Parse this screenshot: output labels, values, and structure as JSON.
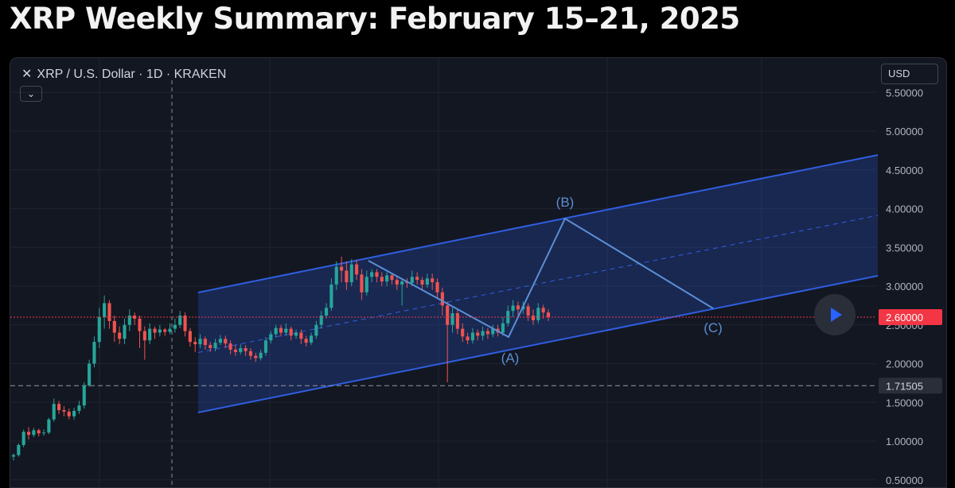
{
  "title": "XRP Weekly Summary: February 15–21, 2025",
  "header": {
    "symbol": "XRP / U.S. Dollar · 1D · KRAKEN",
    "close_icon": "close-icon",
    "collapse_icon": "chevron-down-icon",
    "currency": "USD"
  },
  "colors": {
    "up": "#26a69a",
    "down": "#ef5350",
    "channel": "#2f5ee0",
    "wave": "#5b8fd6",
    "price_line": "#f23645"
  },
  "chart_data": {
    "type": "candlestick",
    "y_axis": {
      "ticks": [
        "5.50000",
        "5.00000",
        "4.50000",
        "4.00000",
        "3.50000",
        "3.00000",
        "2.50000",
        "2.00000",
        "1.50000",
        "1.00000",
        "0.50000"
      ],
      "ylim": [
        0.47,
        5.65
      ]
    },
    "markers": {
      "current_price": {
        "label": "2.60000",
        "value": 2.6
      },
      "horizontal_level": {
        "label": "1.71505",
        "value": 1.71505
      }
    },
    "wave_labels": [
      "(A)",
      "(B)",
      "(C)"
    ],
    "candles": [
      [
        0.8,
        0.82,
        0.75,
        0.84
      ],
      [
        0.82,
        0.95,
        0.8,
        0.97
      ],
      [
        0.95,
        1.12,
        0.92,
        1.15
      ],
      [
        1.12,
        1.08,
        1.02,
        1.18
      ],
      [
        1.08,
        1.14,
        1.05,
        1.17
      ],
      [
        1.14,
        1.1,
        1.06,
        1.16
      ],
      [
        1.1,
        1.11,
        1.07,
        1.15
      ],
      [
        1.11,
        1.28,
        1.09,
        1.3
      ],
      [
        1.28,
        1.48,
        1.25,
        1.55
      ],
      [
        1.48,
        1.4,
        1.35,
        1.52
      ],
      [
        1.4,
        1.38,
        1.32,
        1.45
      ],
      [
        1.38,
        1.32,
        1.28,
        1.42
      ],
      [
        1.32,
        1.39,
        1.28,
        1.43
      ],
      [
        1.39,
        1.46,
        1.35,
        1.52
      ],
      [
        1.46,
        1.72,
        1.42,
        1.76
      ],
      [
        1.72,
        2.0,
        1.7,
        2.05
      ],
      [
        2.0,
        2.28,
        1.95,
        2.35
      ],
      [
        2.28,
        2.6,
        2.2,
        2.72
      ],
      [
        2.6,
        2.78,
        2.45,
        2.88
      ],
      [
        2.78,
        2.55,
        2.45,
        2.82
      ],
      [
        2.55,
        2.4,
        2.28,
        2.62
      ],
      [
        2.4,
        2.32,
        2.25,
        2.48
      ],
      [
        2.32,
        2.5,
        2.25,
        2.58
      ],
      [
        2.5,
        2.62,
        2.42,
        2.7
      ],
      [
        2.62,
        2.58,
        2.5,
        2.66
      ],
      [
        2.58,
        2.42,
        2.2,
        2.62
      ],
      [
        2.42,
        2.3,
        2.05,
        2.48
      ],
      [
        2.3,
        2.45,
        2.25,
        2.52
      ],
      [
        2.45,
        2.4,
        2.32,
        2.48
      ],
      [
        2.4,
        2.44,
        2.35,
        2.5
      ],
      [
        2.44,
        2.41,
        2.36,
        2.46
      ],
      [
        2.41,
        2.45,
        2.38,
        2.52
      ],
      [
        2.45,
        2.5,
        2.4,
        2.58
      ],
      [
        2.5,
        2.62,
        2.46,
        2.68
      ],
      [
        2.62,
        2.42,
        2.35,
        2.66
      ],
      [
        2.42,
        2.28,
        2.22,
        2.46
      ],
      [
        2.28,
        2.25,
        2.15,
        2.34
      ],
      [
        2.25,
        2.32,
        2.2,
        2.38
      ],
      [
        2.32,
        2.24,
        2.18,
        2.35
      ],
      [
        2.24,
        2.2,
        2.15,
        2.28
      ],
      [
        2.2,
        2.27,
        2.16,
        2.32
      ],
      [
        2.27,
        2.32,
        2.24,
        2.37
      ],
      [
        2.32,
        2.26,
        2.2,
        2.36
      ],
      [
        2.26,
        2.18,
        2.12,
        2.3
      ],
      [
        2.18,
        2.15,
        2.1,
        2.24
      ],
      [
        2.15,
        2.2,
        2.12,
        2.25
      ],
      [
        2.2,
        2.16,
        2.1,
        2.24
      ],
      [
        2.16,
        2.1,
        2.05,
        2.2
      ],
      [
        2.1,
        2.07,
        2.02,
        2.14
      ],
      [
        2.07,
        2.14,
        2.04,
        2.18
      ],
      [
        2.14,
        2.3,
        2.1,
        2.34
      ],
      [
        2.3,
        2.38,
        2.26,
        2.42
      ],
      [
        2.38,
        2.46,
        2.34,
        2.5
      ],
      [
        2.46,
        2.4,
        2.35,
        2.5
      ],
      [
        2.4,
        2.45,
        2.36,
        2.52
      ],
      [
        2.45,
        2.36,
        2.3,
        2.48
      ],
      [
        2.36,
        2.4,
        2.32,
        2.44
      ],
      [
        2.4,
        2.32,
        2.25,
        2.44
      ],
      [
        2.32,
        2.27,
        2.22,
        2.36
      ],
      [
        2.27,
        2.36,
        2.24,
        2.4
      ],
      [
        2.36,
        2.5,
        2.32,
        2.55
      ],
      [
        2.5,
        2.62,
        2.45,
        2.68
      ],
      [
        2.62,
        2.72,
        2.58,
        2.78
      ],
      [
        2.72,
        3.02,
        2.68,
        3.1
      ],
      [
        3.02,
        3.25,
        2.95,
        3.32
      ],
      [
        3.25,
        3.2,
        3.05,
        3.38
      ],
      [
        3.2,
        3.05,
        2.95,
        3.32
      ],
      [
        3.05,
        3.28,
        3.0,
        3.35
      ],
      [
        3.28,
        3.15,
        3.08,
        3.34
      ],
      [
        3.15,
        2.92,
        2.82,
        3.22
      ],
      [
        2.92,
        3.12,
        2.88,
        3.2
      ],
      [
        3.12,
        3.18,
        3.05,
        3.22
      ],
      [
        3.18,
        3.12,
        3.05,
        3.22
      ],
      [
        3.12,
        3.06,
        3.0,
        3.18
      ],
      [
        3.06,
        3.14,
        3.0,
        3.18
      ],
      [
        3.14,
        3.08,
        3.02,
        3.16
      ],
      [
        3.08,
        3.02,
        2.95,
        3.12
      ],
      [
        3.02,
        3.06,
        2.75,
        3.1
      ],
      [
        3.06,
        3.04,
        2.98,
        3.1
      ],
      [
        3.04,
        3.12,
        3.0,
        3.2
      ],
      [
        3.12,
        3.08,
        3.02,
        3.18
      ],
      [
        3.08,
        3.02,
        2.95,
        3.12
      ],
      [
        3.02,
        3.1,
        2.98,
        3.16
      ],
      [
        3.1,
        3.05,
        2.95,
        3.16
      ],
      [
        3.05,
        2.92,
        2.85,
        3.1
      ],
      [
        2.92,
        2.75,
        2.62,
        2.98
      ],
      [
        2.75,
        2.5,
        1.76,
        2.8
      ],
      [
        2.5,
        2.65,
        2.4,
        2.72
      ],
      [
        2.65,
        2.45,
        2.38,
        2.7
      ],
      [
        2.45,
        2.35,
        2.28,
        2.52
      ],
      [
        2.35,
        2.3,
        2.25,
        2.4
      ],
      [
        2.3,
        2.4,
        2.26,
        2.46
      ],
      [
        2.4,
        2.36,
        2.3,
        2.44
      ],
      [
        2.36,
        2.42,
        2.3,
        2.48
      ],
      [
        2.42,
        2.38,
        2.32,
        2.46
      ],
      [
        2.38,
        2.45,
        2.34,
        2.5
      ],
      [
        2.45,
        2.4,
        2.35,
        2.5
      ],
      [
        2.4,
        2.52,
        2.36,
        2.6
      ],
      [
        2.52,
        2.68,
        2.48,
        2.75
      ],
      [
        2.68,
        2.75,
        2.6,
        2.82
      ],
      [
        2.75,
        2.7,
        2.62,
        2.8
      ],
      [
        2.7,
        2.74,
        2.64,
        2.8
      ],
      [
        2.74,
        2.62,
        2.55,
        2.78
      ],
      [
        2.62,
        2.56,
        2.5,
        2.7
      ],
      [
        2.56,
        2.72,
        2.52,
        2.78
      ],
      [
        2.72,
        2.66,
        2.58,
        2.76
      ],
      [
        2.66,
        2.6,
        2.55,
        2.7
      ]
    ]
  }
}
